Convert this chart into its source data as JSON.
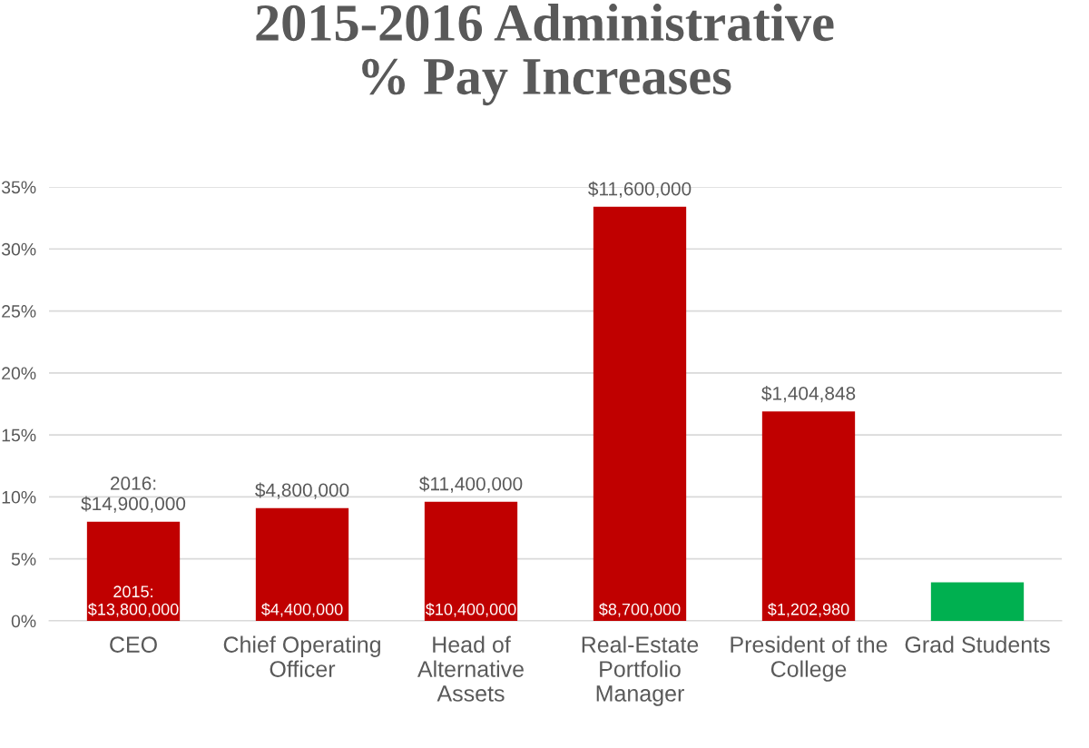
{
  "chart_data": {
    "type": "bar",
    "title": "2015-2016 Administrative\n% Pay Increases",
    "categories": [
      "CEO",
      "Chief Operating\nOfficer",
      "Head of\nAlternative\nAssets",
      "Real-Estate\nPortfolio\nManager",
      "President of the\nCollege",
      "Grad Students"
    ],
    "values": [
      8.0,
      9.1,
      9.6,
      33.4,
      16.9,
      3.1
    ],
    "colors": [
      "#c00000",
      "#c00000",
      "#c00000",
      "#c00000",
      "#c00000",
      "#00b050"
    ],
    "ylim": [
      0,
      35
    ],
    "yticks": [
      {
        "value": 0,
        "label": "0%"
      },
      {
        "value": 5,
        "label": "5%"
      },
      {
        "value": 10,
        "label": "10%"
      },
      {
        "value": 15,
        "label": "15%"
      },
      {
        "value": 20,
        "label": "20%"
      },
      {
        "value": 25,
        "label": "25%"
      },
      {
        "value": 30,
        "label": "30%"
      },
      {
        "value": 35,
        "label": "35%"
      }
    ],
    "grid": "y",
    "annotations": [
      {
        "text": "2016:\n$14,900,000",
        "x": "CEO",
        "y": 8.0
      },
      {
        "text": "$4,800,000",
        "x": "Chief Operating\nOfficer",
        "y": 9.1
      },
      {
        "text": "$11,400,000",
        "x": "Head of\nAlternative\nAssets",
        "y": 9.6
      },
      {
        "text": "$11,600,000",
        "x": "Real-Estate\nPortfolio\nManager",
        "y": 33.4
      },
      {
        "text": "$1,404,848",
        "x": "President of the\nCollege",
        "y": 16.9
      },
      {
        "text": "2015:\n$13,800,000",
        "x": "CEO",
        "y": 0
      },
      {
        "text": "$4,400,000",
        "x": "Chief Operating\nOfficer",
        "y": 0
      },
      {
        "text": "$10,400,000",
        "x": "Head of\nAlternative\nAssets",
        "y": 0
      },
      {
        "text": "$8,700,000",
        "x": "Real-Estate\nPortfolio\nManager",
        "y": 0
      },
      {
        "text": "$1,202,980",
        "x": "President of the\nCollege",
        "y": 0
      }
    ]
  }
}
